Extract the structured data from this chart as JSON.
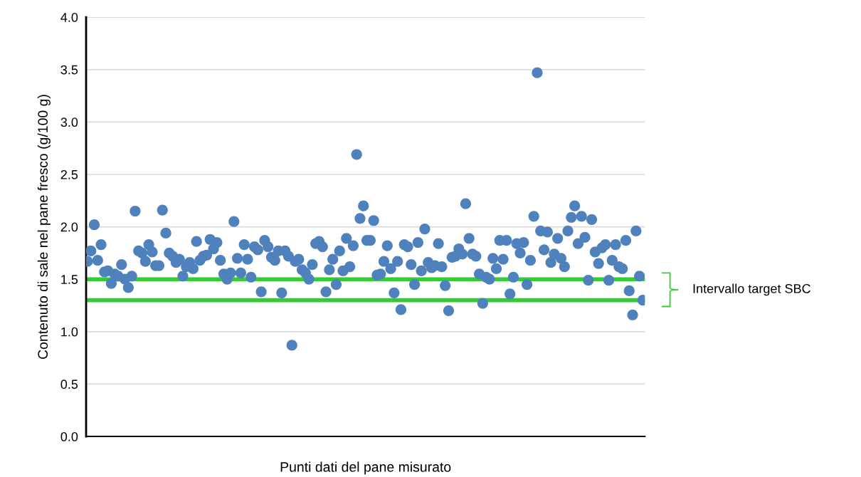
{
  "chart_data": {
    "type": "scatter",
    "ylabel": "Contenuto di sale nel pane fresco (g/100 g)",
    "xlabel": "Punti dati del pane misurato",
    "categories": [
      null,
      null,
      null,
      null,
      null,
      null,
      null,
      null,
      null,
      null,
      null,
      null,
      null,
      null,
      null,
      null,
      null,
      null,
      null,
      null,
      null,
      null,
      null,
      null,
      null,
      null,
      null,
      null,
      null,
      null,
      null,
      null,
      null,
      null,
      null,
      null,
      null,
      null,
      null,
      null,
      null,
      null,
      null,
      null,
      null,
      null,
      null,
      null,
      null,
      null,
      null,
      null,
      null,
      null,
      null,
      null,
      null,
      null,
      null,
      null,
      null,
      null,
      null,
      null,
      null,
      null,
      null,
      null,
      null,
      null,
      null,
      null,
      null,
      null,
      null,
      null,
      null,
      null,
      null,
      null,
      null,
      null,
      null,
      null,
      null,
      null,
      null,
      null,
      null,
      null,
      null,
      null,
      null,
      null,
      null,
      null,
      null,
      null,
      null,
      null,
      null,
      null,
      null,
      null,
      null,
      null,
      null,
      null,
      null,
      null,
      null,
      null,
      null,
      null,
      null,
      null,
      null,
      null,
      null,
      null,
      null,
      null,
      null,
      null,
      null,
      null,
      null,
      null,
      null,
      null,
      null,
      null,
      null,
      null,
      null,
      null,
      null,
      null,
      null,
      null,
      null,
      null,
      null,
      null,
      null,
      null,
      null,
      null,
      null,
      null,
      null,
      null,
      null,
      null,
      null,
      null,
      null,
      null,
      null,
      null,
      null,
      null,
      null,
      null
    ],
    "series": [
      {
        "color": "#4f81bd",
        "values": [
          1.67,
          1.77,
          2.02,
          1.68,
          1.83,
          1.57,
          1.58,
          1.46,
          1.55,
          1.53,
          1.64,
          1.5,
          1.42,
          1.53,
          2.15,
          1.77,
          1.75,
          1.67,
          1.83,
          1.76,
          1.63,
          1.63,
          2.16,
          1.94,
          1.75,
          1.72,
          1.66,
          1.69,
          1.53,
          1.62,
          1.66,
          1.6,
          1.86,
          1.68,
          1.72,
          1.73,
          1.88,
          1.79,
          1.85,
          1.68,
          1.55,
          1.5,
          1.56,
          2.05,
          1.7,
          1.56,
          1.83,
          1.69,
          1.52,
          1.81,
          1.78,
          1.38,
          1.87,
          1.81,
          1.71,
          1.68,
          1.77,
          1.37,
          1.77,
          1.72,
          0.87,
          1.67,
          1.69,
          1.59,
          1.56,
          1.5,
          1.64,
          1.84,
          1.86,
          1.81,
          1.38,
          1.59,
          1.69,
          1.45,
          1.77,
          1.58,
          1.89,
          1.62,
          1.82,
          2.69,
          2.08,
          2.2,
          1.87,
          1.87,
          2.06,
          1.54,
          1.55,
          1.67,
          1.82,
          1.6,
          1.37,
          1.67,
          1.21,
          1.83,
          1.81,
          1.64,
          1.45,
          1.85,
          1.58,
          1.98,
          1.66,
          1.61,
          1.63,
          1.84,
          1.62,
          1.44,
          1.2,
          1.71,
          1.72,
          1.79,
          1.74,
          2.22,
          1.89,
          1.74,
          1.72,
          1.55,
          1.27,
          1.52,
          1.5,
          1.7,
          1.6,
          1.87,
          1.69,
          1.87,
          1.36,
          1.52,
          1.84,
          1.75,
          1.85,
          1.45,
          1.68,
          2.1,
          3.47,
          1.96,
          1.78,
          1.95,
          1.66,
          1.74,
          1.89,
          1.7,
          1.62,
          1.96,
          2.09,
          2.2,
          1.84,
          2.1,
          1.9,
          1.49,
          2.07,
          1.76,
          1.65,
          1.8,
          1.83,
          1.49,
          1.68,
          1.83,
          1.62,
          1.6,
          1.87,
          1.39,
          1.16,
          1.96,
          1.53,
          1.3
        ]
      }
    ],
    "ylim": [
      0,
      4
    ],
    "yticks": [
      {
        "value": 0,
        "label": "0.0"
      },
      {
        "value": 0.5,
        "label": "0.5"
      },
      {
        "value": 1,
        "label": "1.0"
      },
      {
        "value": 1.5,
        "label": "1.5"
      },
      {
        "value": 2,
        "label": "2.0"
      },
      {
        "value": 2.5,
        "label": "2.5"
      },
      {
        "value": 3,
        "label": "3.0"
      },
      {
        "value": 3.5,
        "label": "3.5"
      },
      {
        "value": 4,
        "label": "4.0"
      }
    ],
    "grid": "y",
    "marker": "circle",
    "ref_lines": [
      {
        "axis": "y",
        "value": 1.5,
        "color": "#33cc33"
      },
      {
        "axis": "y",
        "value": 1.3,
        "color": "#33cc33"
      }
    ],
    "annotations": [
      "Intervallo target SBC"
    ]
  }
}
